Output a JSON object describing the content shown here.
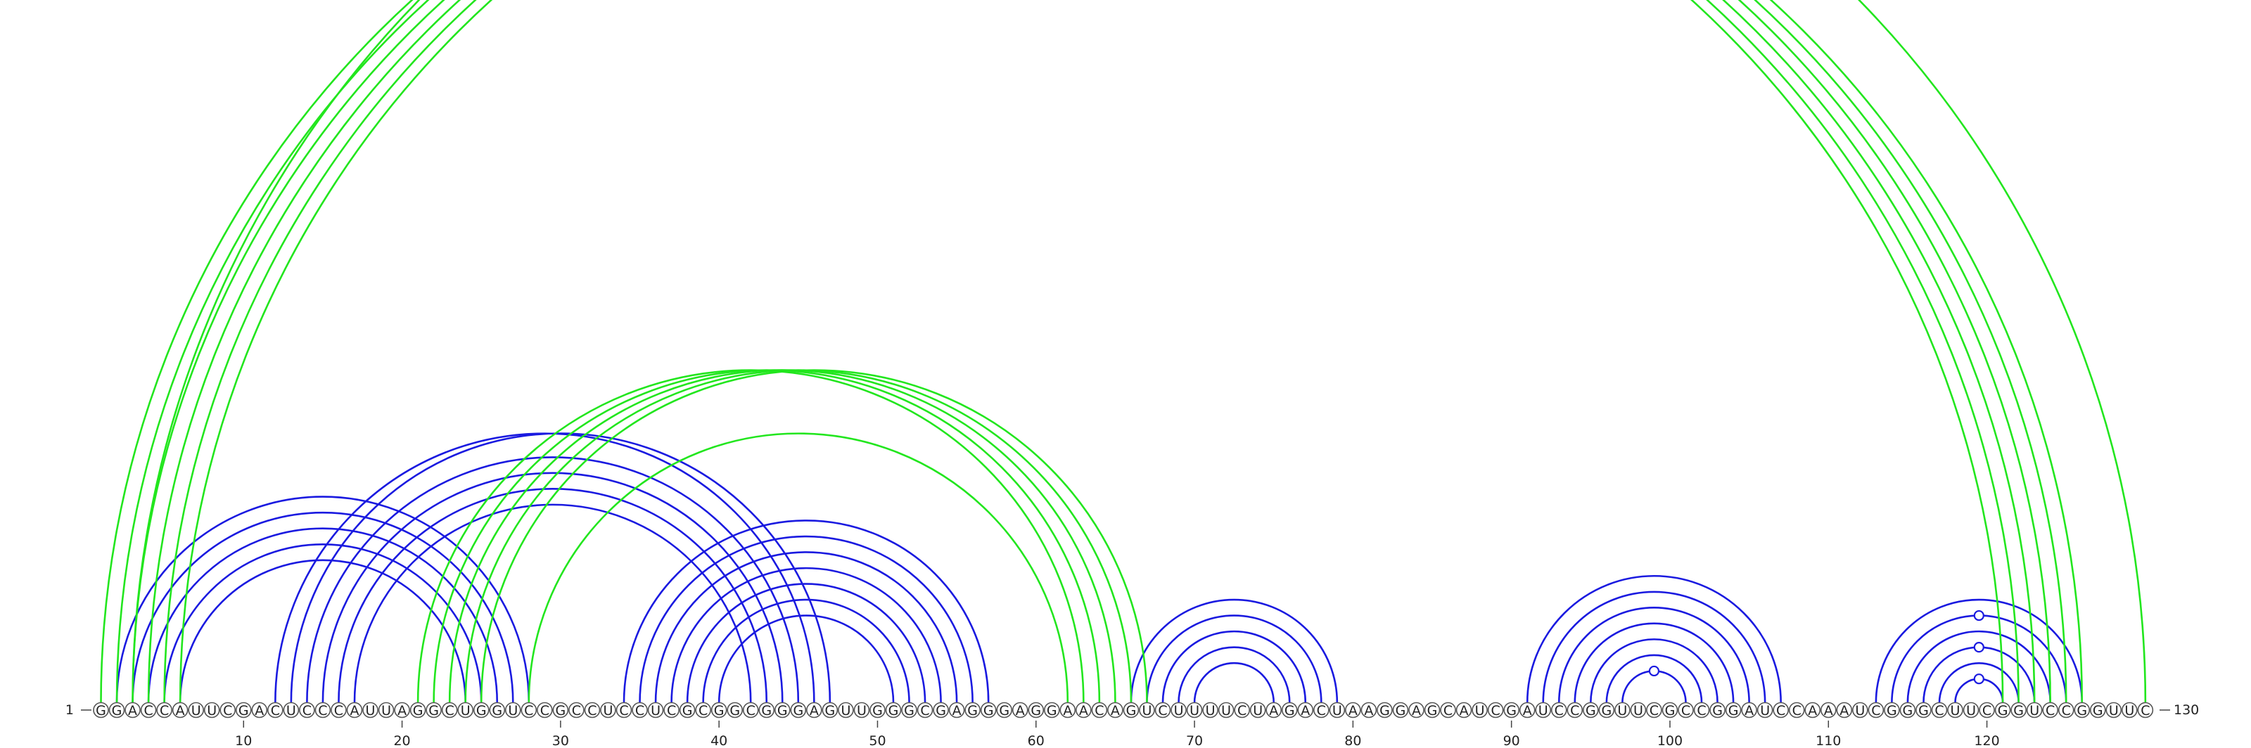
{
  "sequence": "GGACCAUUCGACUCCCAUUAGGCUGGUCCGCCUCCUCGCGGCGGGAGUUGGGCGAGGGAGGAACAGUCUUUUCUAGACUAAGGAGCAUCGAUCCGGUUCGCCGGAUCCAAAUCGGGCUUCGGUCCGGUUC",
  "length": 130,
  "start_label": "1",
  "end_label": "130",
  "ticks": [
    10,
    20,
    30,
    40,
    50,
    60,
    70,
    80,
    90,
    100,
    110,
    120
  ],
  "colors": {
    "blue": "#1a1ae0",
    "green": "#22e61e",
    "circle_stroke": "#555555"
  },
  "arcs": {
    "blue": [
      [
        2,
        28
      ],
      [
        3,
        27
      ],
      [
        4,
        26
      ],
      [
        5,
        25
      ],
      [
        6,
        24
      ],
      [
        12,
        46
      ],
      [
        13,
        47
      ],
      [
        14,
        45
      ],
      [
        15,
        44
      ],
      [
        16,
        43
      ],
      [
        17,
        42
      ],
      [
        34,
        57
      ],
      [
        35,
        56
      ],
      [
        36,
        55
      ],
      [
        37,
        54
      ],
      [
        38,
        53
      ],
      [
        39,
        52
      ],
      [
        40,
        51
      ],
      [
        66,
        79
      ],
      [
        67,
        78
      ],
      [
        68,
        77
      ],
      [
        69,
        76
      ],
      [
        70,
        75
      ],
      [
        91,
        107
      ],
      [
        92,
        106
      ],
      [
        93,
        105
      ],
      [
        94,
        104
      ],
      [
        95,
        103
      ],
      [
        96,
        102
      ],
      [
        97,
        101
      ],
      [
        113,
        126
      ],
      [
        114,
        125
      ],
      [
        115,
        124
      ],
      [
        116,
        123
      ],
      [
        117,
        122
      ],
      [
        118,
        121
      ]
    ],
    "green": [
      [
        1,
        121
      ],
      [
        2,
        122
      ],
      [
        3,
        123
      ],
      [
        4,
        124
      ],
      [
        5,
        125
      ],
      [
        6,
        126
      ],
      [
        3,
        130
      ],
      [
        21,
        63
      ],
      [
        22,
        64
      ],
      [
        23,
        65
      ],
      [
        24,
        66
      ],
      [
        25,
        67
      ],
      [
        28,
        62
      ]
    ]
  },
  "markers": {
    "green": [
      66,
      45
    ],
    "blue": [
      120,
      120,
      120,
      99
    ]
  }
}
